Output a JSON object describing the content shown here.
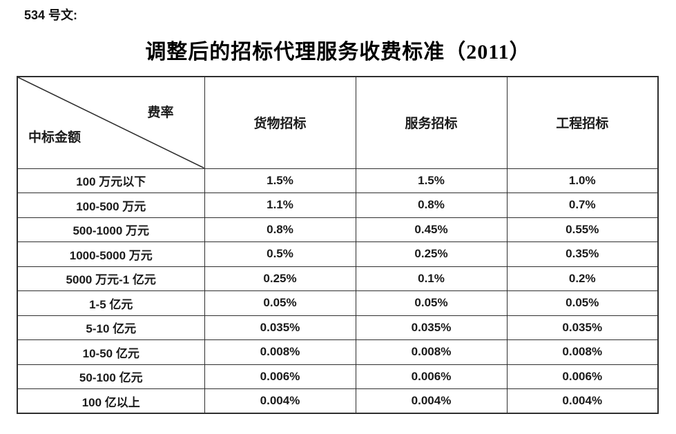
{
  "doc_label": "534 号文:",
  "title": "调整后的招标代理服务收费标准（2011）",
  "colors": {
    "background": "#ffffff",
    "text": "#1a1a1a",
    "border": "#2e2e2e"
  },
  "table": {
    "corner": {
      "top_label": "费率",
      "bottom_label": "中标金额"
    },
    "columns": [
      "货物招标",
      "服务招标",
      "工程招标"
    ],
    "rows": [
      {
        "amount": "100 万元以下",
        "values": [
          "1.5%",
          "1.5%",
          "1.0%"
        ]
      },
      {
        "amount": "100-500 万元",
        "values": [
          "1.1%",
          "0.8%",
          "0.7%"
        ]
      },
      {
        "amount": "500-1000 万元",
        "values": [
          "0.8%",
          "0.45%",
          "0.55%"
        ]
      },
      {
        "amount": "1000-5000 万元",
        "values": [
          "0.5%",
          "0.25%",
          "0.35%"
        ]
      },
      {
        "amount": "5000 万元-1 亿元",
        "values": [
          "0.25%",
          "0.1%",
          "0.2%"
        ]
      },
      {
        "amount": "1-5 亿元",
        "values": [
          "0.05%",
          "0.05%",
          "0.05%"
        ]
      },
      {
        "amount": "5-10 亿元",
        "values": [
          "0.035%",
          "0.035%",
          "0.035%"
        ]
      },
      {
        "amount": "10-50 亿元",
        "values": [
          "0.008%",
          "0.008%",
          "0.008%"
        ]
      },
      {
        "amount": "50-100 亿元",
        "values": [
          "0.006%",
          "0.006%",
          "0.006%"
        ]
      },
      {
        "amount": "100 亿以上",
        "values": [
          "0.004%",
          "0.004%",
          "0.004%"
        ]
      }
    ]
  }
}
